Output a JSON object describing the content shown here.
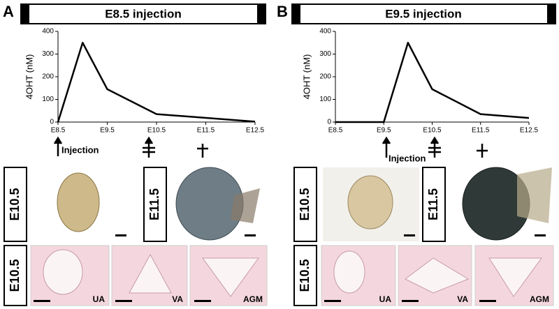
{
  "chart_data": [
    {
      "type": "line",
      "ylabel": "4OHT (nM)",
      "x": [
        8.5,
        9.0,
        9.5,
        10.5,
        12.5
      ],
      "values": [
        0,
        350,
        145,
        35,
        2
      ],
      "color": "#000000",
      "xlim": [
        8.5,
        12.5
      ],
      "xticks": [
        {
          "value": 8.5,
          "label": "E8.5"
        },
        {
          "value": 9.5,
          "label": "E9.5"
        },
        {
          "value": 10.5,
          "label": "E10.5"
        },
        {
          "value": 11.5,
          "label": "E11.5"
        },
        {
          "value": 12.5,
          "label": "E12.5"
        }
      ],
      "ylim": [
        0,
        400
      ],
      "yticks": [
        0,
        100,
        200,
        300,
        400
      ]
    },
    {
      "type": "line",
      "ylabel": "4OHT (nM)",
      "x": [
        8.5,
        9.5,
        10.0,
        10.5,
        11.5,
        12.5
      ],
      "values": [
        0,
        0,
        350,
        145,
        35,
        18
      ],
      "color": "#000000",
      "xlim": [
        8.5,
        12.5
      ],
      "xticks": [
        {
          "value": 8.5,
          "label": "E8.5"
        },
        {
          "value": 9.5,
          "label": "E9.5"
        },
        {
          "value": 10.5,
          "label": "E10.5"
        },
        {
          "value": 11.5,
          "label": "E11.5"
        },
        {
          "value": 12.5,
          "label": "E12.5"
        }
      ],
      "ylim": [
        0,
        400
      ],
      "yticks": [
        0,
        100,
        200,
        300,
        400
      ]
    }
  ],
  "panels": [
    {
      "label": "A",
      "banner": "E8.5 injection",
      "injection": "Injection",
      "whole_mount": [
        "E10.5",
        "E11.5"
      ],
      "section_stage": "E10.5",
      "sections": [
        "UA",
        "VA",
        "AGM"
      ]
    },
    {
      "label": "B",
      "banner": "E9.5 injection",
      "injection": "Injection",
      "whole_mount": [
        "E10.5",
        "E11.5"
      ],
      "section_stage": "E10.5",
      "sections": [
        "UA",
        "VA",
        "AGM"
      ]
    }
  ]
}
